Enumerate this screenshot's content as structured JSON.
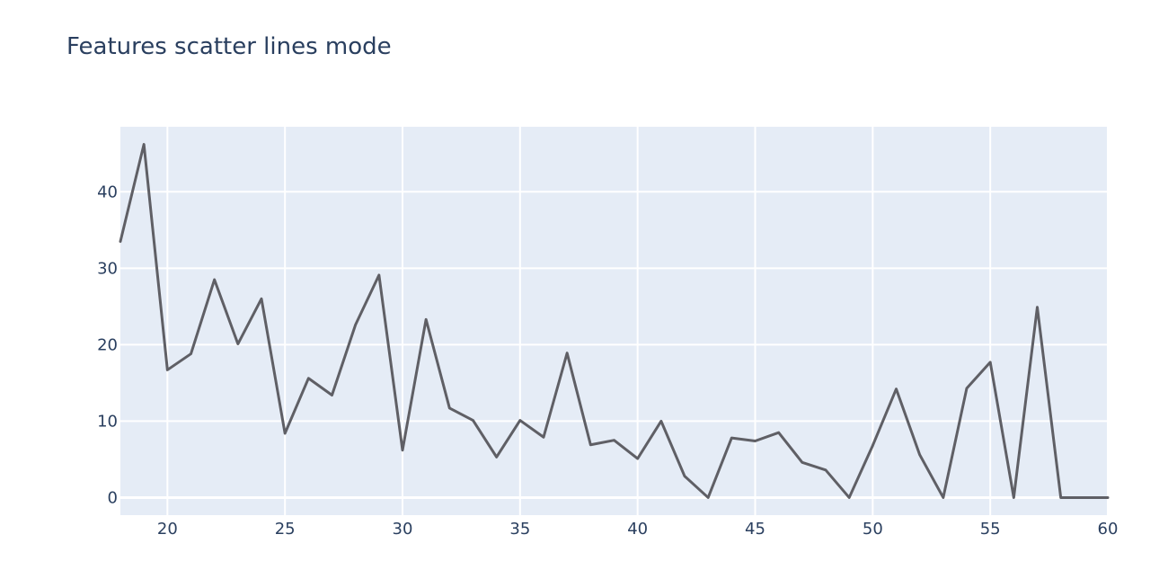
{
  "chart_data": {
    "type": "line",
    "title": "Features scatter lines mode",
    "xlabel": "",
    "ylabel": "",
    "xlim": [
      18,
      60
    ],
    "ylim": [
      -2.3,
      48.5
    ],
    "x_ticks": [
      20,
      25,
      30,
      35,
      40,
      45,
      50,
      55,
      60
    ],
    "y_ticks": [
      0,
      10,
      20,
      30,
      40
    ],
    "grid": true,
    "legend": "none",
    "colors": {
      "plot_background": "#e5ecf6",
      "grid": "#ffffff",
      "line": "#5f5f65",
      "text": "#2a3f5f"
    },
    "series": [
      {
        "x": [
          18,
          19,
          20,
          21,
          22,
          23,
          24,
          25,
          26,
          27,
          28,
          29,
          30,
          31,
          32,
          33,
          34,
          35,
          36,
          37,
          38,
          39,
          40,
          41,
          42,
          43,
          44,
          45,
          46,
          47,
          48,
          49,
          50,
          51,
          52,
          53,
          54,
          55,
          56,
          57,
          58,
          59,
          60
        ],
        "y": [
          33.5,
          46.2,
          16.7,
          18.8,
          28.5,
          20.1,
          26.0,
          8.4,
          15.6,
          13.4,
          22.6,
          29.1,
          6.2,
          23.3,
          11.7,
          10.1,
          5.3,
          10.1,
          7.9,
          18.9,
          6.9,
          7.5,
          5.1,
          10.0,
          2.8,
          0.0,
          7.8,
          7.4,
          8.5,
          4.6,
          3.6,
          0.0,
          6.8,
          14.2,
          5.6,
          0.0,
          14.3,
          17.7,
          0.0,
          24.9,
          0.0,
          0.0,
          0.0
        ]
      }
    ]
  }
}
